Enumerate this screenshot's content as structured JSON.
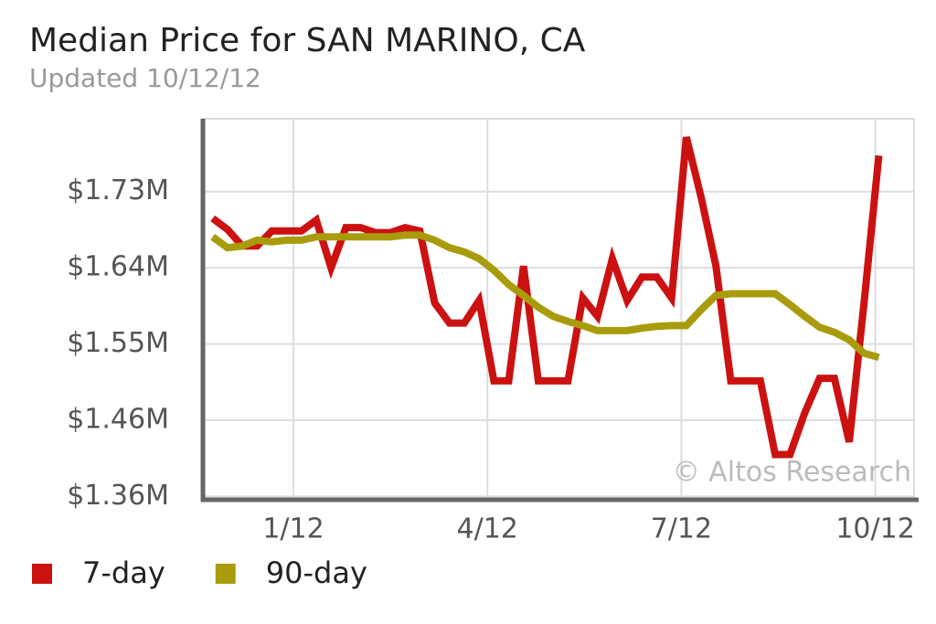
{
  "chart_data": {
    "type": "line",
    "title": "Median Price for SAN MARINO, CA",
    "subtitle": "Updated 10/12/12",
    "annotation": "© Altos Research",
    "x": [
      -0.25,
      -0.021,
      0.208,
      0.437,
      0.666,
      0.895,
      1.124,
      1.353,
      1.582,
      1.811,
      2.04,
      2.269,
      2.498,
      2.727,
      2.956,
      3.185,
      3.414,
      3.643,
      3.872,
      4.101,
      4.33,
      4.559,
      4.788,
      5.017,
      5.246,
      5.475,
      5.704,
      5.933,
      6.162,
      6.391,
      6.62,
      6.849,
      7.078,
      7.307,
      7.536,
      7.765,
      7.994,
      8.223,
      8.452,
      8.681,
      8.91,
      9.139,
      9.368,
      9.597,
      9.826,
      10.055
    ],
    "series": [
      {
        "name": "7-day",
        "color": "#cc1111",
        "values": [
          1696000,
          1683000,
          1663000,
          1663000,
          1681000,
          1681000,
          1681000,
          1694000,
          1637000,
          1685000,
          1685000,
          1679000,
          1679000,
          1685000,
          1681000,
          1595000,
          1571000,
          1571000,
          1598000,
          1502000,
          1502000,
          1639000,
          1502000,
          1502000,
          1502000,
          1601000,
          1579000,
          1648000,
          1598000,
          1626000,
          1626000,
          1601000,
          1793000,
          1721000,
          1639000,
          1502000,
          1502000,
          1502000,
          1414000,
          1414000,
          1464000,
          1505000,
          1505000,
          1429000,
          1595000,
          1771000
        ]
      },
      {
        "name": "90-day",
        "color": "#a89c0c",
        "values": [
          1674000,
          1661000,
          1663000,
          1670000,
          1668000,
          1670000,
          1670000,
          1674000,
          1674000,
          1674000,
          1674000,
          1674000,
          1674000,
          1676000,
          1676000,
          1670000,
          1661000,
          1656000,
          1648000,
          1634000,
          1617000,
          1604000,
          1590000,
          1579000,
          1573000,
          1568000,
          1562000,
          1562000,
          1562000,
          1565000,
          1567000,
          1568000,
          1568000,
          1587000,
          1604000,
          1606000,
          1606000,
          1606000,
          1606000,
          1593000,
          1579000,
          1566000,
          1560000,
          1551000,
          1535000,
          1530000
        ]
      }
    ],
    "xlim": [
      -0.4,
      10.6
    ],
    "xticks": [
      {
        "value": 1,
        "label": "1/12"
      },
      {
        "value": 4,
        "label": "4/12"
      },
      {
        "value": 7,
        "label": "7/12"
      },
      {
        "value": 10,
        "label": "10/12"
      }
    ],
    "ylim": [
      1360000,
      1815000
    ],
    "yticks": [
      {
        "value": 1364000,
        "label": "$1.36M"
      },
      {
        "value": 1455000,
        "label": "$1.46M"
      },
      {
        "value": 1546000,
        "label": "$1.55M"
      },
      {
        "value": 1637000,
        "label": "$1.64M"
      },
      {
        "value": 1728000,
        "label": "$1.73M"
      }
    ],
    "grid": true,
    "legend": "bottom"
  }
}
